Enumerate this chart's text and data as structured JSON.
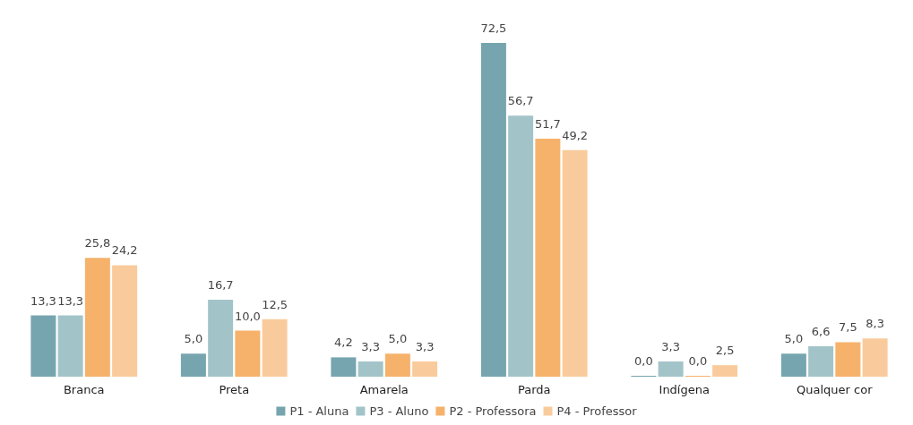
{
  "chart_data": {
    "type": "bar",
    "categories": [
      "Branca",
      "Preta",
      "Amarela",
      "Parda",
      "Indígena",
      "Qualquer cor"
    ],
    "series": [
      {
        "name": "P1 - Aluna",
        "color": "#76a5af",
        "values": [
          13.3,
          5.0,
          4.2,
          72.5,
          0.0,
          5.0
        ],
        "value_labels": [
          "13,3",
          "5,0",
          "4,2",
          "72,5",
          "0,0",
          "5,0"
        ]
      },
      {
        "name": "P3 - Aluno",
        "color": "#a2c4c9",
        "values": [
          13.3,
          16.7,
          3.3,
          56.7,
          3.3,
          6.6
        ],
        "value_labels": [
          "13,3",
          "16,7",
          "3,3",
          "56,7",
          "3,3",
          "6,6"
        ]
      },
      {
        "name": "P2 - Professora",
        "color": "#f6b26b",
        "values": [
          25.8,
          10.0,
          5.0,
          51.7,
          0.0,
          7.5
        ],
        "value_labels": [
          "25,8",
          "10,0",
          "5,0",
          "51,7",
          "0,0",
          "7,5"
        ]
      },
      {
        "name": "P4 - Professor",
        "color": "#f9cb9c",
        "values": [
          24.2,
          12.5,
          3.3,
          49.2,
          2.5,
          8.3
        ],
        "value_labels": [
          "24,2",
          "12,5",
          "3,3",
          "49,2",
          "2,5",
          "8,3"
        ]
      }
    ],
    "legend": "bottom"
  }
}
